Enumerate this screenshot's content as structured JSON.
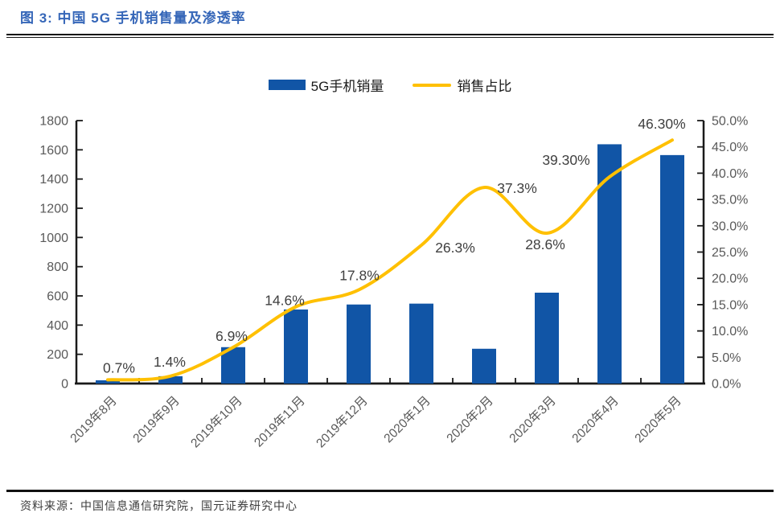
{
  "header": {
    "title": "图 3: 中国 5G 手机销售量及渗透率"
  },
  "legend": {
    "items": [
      {
        "label": "5G手机销量",
        "swatch": "bar",
        "color": "#1155a6"
      },
      {
        "label": "销售占比",
        "swatch": "line",
        "color": "#ffc000"
      }
    ]
  },
  "chart_data": {
    "type": "bar+line",
    "title": "中国 5G 手机销售量及渗透率",
    "categories": [
      "2019年8月",
      "2019年9月",
      "2019年10月",
      "2019年11月",
      "2019年12月",
      "2020年1月",
      "2020年2月",
      "2020年3月",
      "2020年4月",
      "2020年5月"
    ],
    "series": [
      {
        "name": "5G手机销量",
        "type": "bar",
        "y_axis": "left",
        "color": "#1155a6",
        "values": [
          22,
          50,
          249,
          507,
          541,
          547,
          238,
          622,
          1638,
          1564
        ]
      },
      {
        "name": "销售占比",
        "type": "line",
        "y_axis": "right",
        "color": "#ffc000",
        "values": [
          0.7,
          1.4,
          6.9,
          14.6,
          17.8,
          26.3,
          37.3,
          28.6,
          39.3,
          46.3
        ],
        "point_labels": [
          "0.7%",
          "1.4%",
          "6.9%",
          "14.6%",
          "17.8%",
          "26.3%",
          "37.3%",
          "28.6%",
          "39.30%",
          "46.30%"
        ]
      }
    ],
    "left_axis": {
      "min": 0,
      "max": 1800,
      "step": 200,
      "tick_labels": [
        "0",
        "200",
        "400",
        "600",
        "800",
        "1000",
        "1200",
        "1400",
        "1600",
        "1800"
      ]
    },
    "right_axis": {
      "min": 0,
      "max": 50,
      "step": 5,
      "tick_labels": [
        "0.0%",
        "5.0%",
        "10.0%",
        "15.0%",
        "20.0%",
        "25.0%",
        "30.0%",
        "35.0%",
        "40.0%",
        "45.0%",
        "50.0%"
      ]
    },
    "grid": false,
    "legend_position": "top",
    "axis_color": "#1a1a1a",
    "tick_label_color": "#595959",
    "data_label_color": "#404040"
  },
  "footer": {
    "source": "资料来源：中国信息通信研究院，国元证券研究中心"
  }
}
